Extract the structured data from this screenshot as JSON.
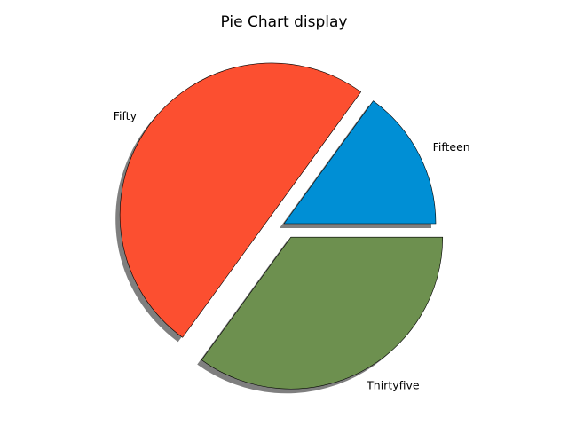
{
  "chart_data": {
    "type": "pie",
    "title": "Pie Chart display",
    "labels": [
      "Fifteen",
      "Fifty",
      "Thirtyfive"
    ],
    "values": [
      15,
      50,
      35
    ],
    "colors": [
      "#008fd5",
      "#fc4f30",
      "#6d904f"
    ],
    "explode": [
      0,
      0.1,
      0.1
    ],
    "start_angle_deg": 0,
    "direction": "counterclockwise",
    "shadow": true,
    "edge_color": "#000000"
  }
}
